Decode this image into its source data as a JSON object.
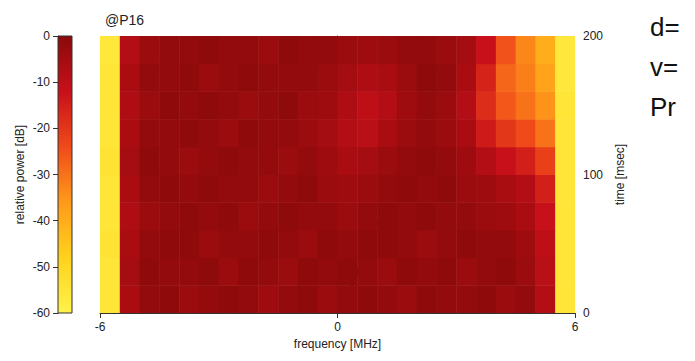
{
  "chart_data": {
    "type": "heatmap",
    "title": "@P16",
    "x_label": "frequency [MHz]",
    "y_label": "time [msec]",
    "x": [
      -5.75,
      -5.25,
      -4.75,
      -4.25,
      -3.75,
      -3.25,
      -2.75,
      -2.25,
      -1.75,
      -1.25,
      -0.75,
      -0.25,
      0.25,
      0.75,
      1.25,
      1.75,
      2.25,
      2.75,
      3.25,
      3.75,
      4.25,
      4.75,
      5.25,
      5.75
    ],
    "y": [
      10,
      30,
      50,
      70,
      90,
      110,
      130,
      150,
      170,
      190
    ],
    "values": [
      [
        -55,
        -6,
        -2,
        -1,
        -3,
        -2,
        -1,
        -2,
        -4,
        -2,
        -1,
        -3,
        -2,
        -1,
        -2,
        -3,
        -1,
        -2,
        -2,
        -1,
        -3,
        -2,
        -8,
        -55
      ],
      [
        -55,
        -5,
        -1,
        -2,
        -2,
        -1,
        -3,
        -1,
        -2,
        -3,
        -1,
        -2,
        -1,
        -2,
        -3,
        -1,
        -2,
        -1,
        -3,
        -2,
        -1,
        -3,
        -9,
        -55
      ],
      [
        -54,
        -6,
        -2,
        -1,
        -1,
        -3,
        -2,
        -2,
        -1,
        -2,
        -3,
        -1,
        -2,
        -1,
        -1,
        -2,
        -3,
        -2,
        -1,
        -2,
        -2,
        -4,
        -10,
        -55
      ],
      [
        -55,
        -7,
        -3,
        -2,
        -1,
        -2,
        -1,
        -3,
        -2,
        -1,
        -2,
        -2,
        -3,
        -2,
        -1,
        -2,
        -1,
        -2,
        -2,
        -3,
        -4,
        -6,
        -12,
        -55
      ],
      [
        -55,
        -6,
        -2,
        -1,
        -2,
        -1,
        -2,
        -2,
        -3,
        -2,
        -1,
        -3,
        -4,
        -3,
        -2,
        -1,
        -2,
        -1,
        -3,
        -4,
        -6,
        -8,
        -15,
        -55
      ],
      [
        -54,
        -5,
        -1,
        -2,
        -3,
        -2,
        -1,
        -2,
        -2,
        -3,
        -2,
        -4,
        -6,
        -5,
        -3,
        -2,
        -1,
        -2,
        -4,
        -8,
        -12,
        -15,
        -22,
        -55
      ],
      [
        -55,
        -6,
        -2,
        -2,
        -1,
        -2,
        -3,
        -1,
        -2,
        -2,
        -3,
        -5,
        -8,
        -9,
        -6,
        -3,
        -2,
        -3,
        -6,
        -14,
        -20,
        -24,
        -30,
        -55
      ],
      [
        -55,
        -7,
        -3,
        -1,
        -2,
        -1,
        -2,
        -3,
        -2,
        -1,
        -3,
        -4,
        -7,
        -10,
        -8,
        -4,
        -2,
        -3,
        -8,
        -18,
        -26,
        -30,
        -35,
        -55
      ],
      [
        -55,
        -6,
        -2,
        -2,
        -1,
        -3,
        -2,
        -1,
        -2,
        -2,
        -2,
        -3,
        -5,
        -7,
        -6,
        -3,
        -1,
        -2,
        -6,
        -16,
        -28,
        -32,
        -38,
        -56
      ],
      [
        -56,
        -8,
        -3,
        -2,
        -2,
        -1,
        -2,
        -2,
        -3,
        -1,
        -2,
        -2,
        -3,
        -4,
        -3,
        -2,
        -2,
        -3,
        -5,
        -12,
        -25,
        -33,
        -40,
        -56
      ]
    ],
    "xlim": [
      -6,
      6
    ],
    "xticks": [
      -6,
      0,
      6
    ],
    "ylim": [
      0,
      200
    ],
    "yticks": [
      0,
      100,
      200
    ],
    "colorbar": {
      "label": "relative power [dB]",
      "range": [
        -60,
        0
      ],
      "ticks": [
        -60,
        -50,
        -40,
        -30,
        -20,
        -10,
        0
      ]
    },
    "annotations": [
      "d=",
      "v=",
      "Pr"
    ]
  }
}
